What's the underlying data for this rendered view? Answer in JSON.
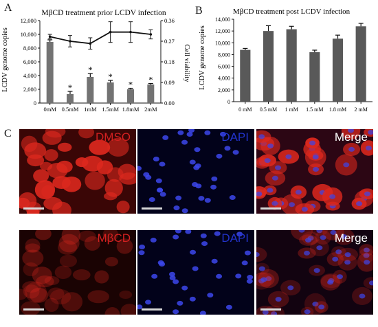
{
  "panels": {
    "a_label": "A",
    "b_label": "B",
    "c_label": "C"
  },
  "chart_data": [
    {
      "type": "bar",
      "title": "MβCD treatment prior LCDV infection",
      "ylabel": "LCDV genome copies",
      "y2label": "Cell viability",
      "categories": [
        "0mM",
        "0.5mM",
        "1mM",
        "1.5mM",
        "1.8mM",
        "2mM"
      ],
      "values": [
        8900,
        1300,
        3800,
        3000,
        2000,
        2700
      ],
      "errors": [
        300,
        400,
        500,
        300,
        150,
        150
      ],
      "significance": [
        "",
        "*",
        "*",
        "*",
        "*",
        "*"
      ],
      "ylim": [
        0,
        12000
      ],
      "yticks": [
        "0",
        "2,000",
        "4,000",
        "6,000",
        "8,000",
        "10,000",
        "12,000"
      ],
      "y2lim": [
        0,
        0.36
      ],
      "y2ticks": [
        "0.00",
        "0.09",
        "0.18",
        "0.27",
        "0.36"
      ],
      "line_series": {
        "values": [
          0.29,
          0.27,
          0.26,
          0.31,
          0.31,
          0.3
        ],
        "errors": [
          0.01,
          0.025,
          0.025,
          0.045,
          0.045,
          0.02
        ]
      },
      "colors": {
        "bar": "#737373",
        "line": "#111111"
      }
    },
    {
      "type": "bar",
      "title": "MβCD treatment post LCDV infection",
      "ylabel": "LCDV genome copies",
      "categories": [
        "0 mM",
        "0.5 mM",
        "1 mM",
        "1.5 mM",
        "1.8 mM",
        "2 mM"
      ],
      "values": [
        8800,
        12000,
        12300,
        8400,
        10700,
        12800
      ],
      "errors": [
        250,
        900,
        500,
        350,
        600,
        500
      ],
      "ylim": [
        0,
        14000
      ],
      "yticks": [
        "0",
        "2,000",
        "4,000",
        "6,000",
        "8,000",
        "10,000",
        "12,000",
        "14,000"
      ],
      "colors": {
        "bar": "#595959"
      }
    }
  ],
  "micrographs": [
    {
      "label": "DMSO",
      "stain": "red",
      "color": "#d42020"
    },
    {
      "label": "DAPI",
      "stain": "blue",
      "color": "#2233cc"
    },
    {
      "label": "Merge",
      "stain": "merge",
      "color": "#ffffff"
    },
    {
      "label": "MβCD",
      "stain": "dimred",
      "color": "#d42020"
    },
    {
      "label": "DAPI",
      "stain": "blue",
      "color": "#2233cc"
    },
    {
      "label": "Merge",
      "stain": "dimmerge",
      "color": "#ffffff"
    }
  ]
}
